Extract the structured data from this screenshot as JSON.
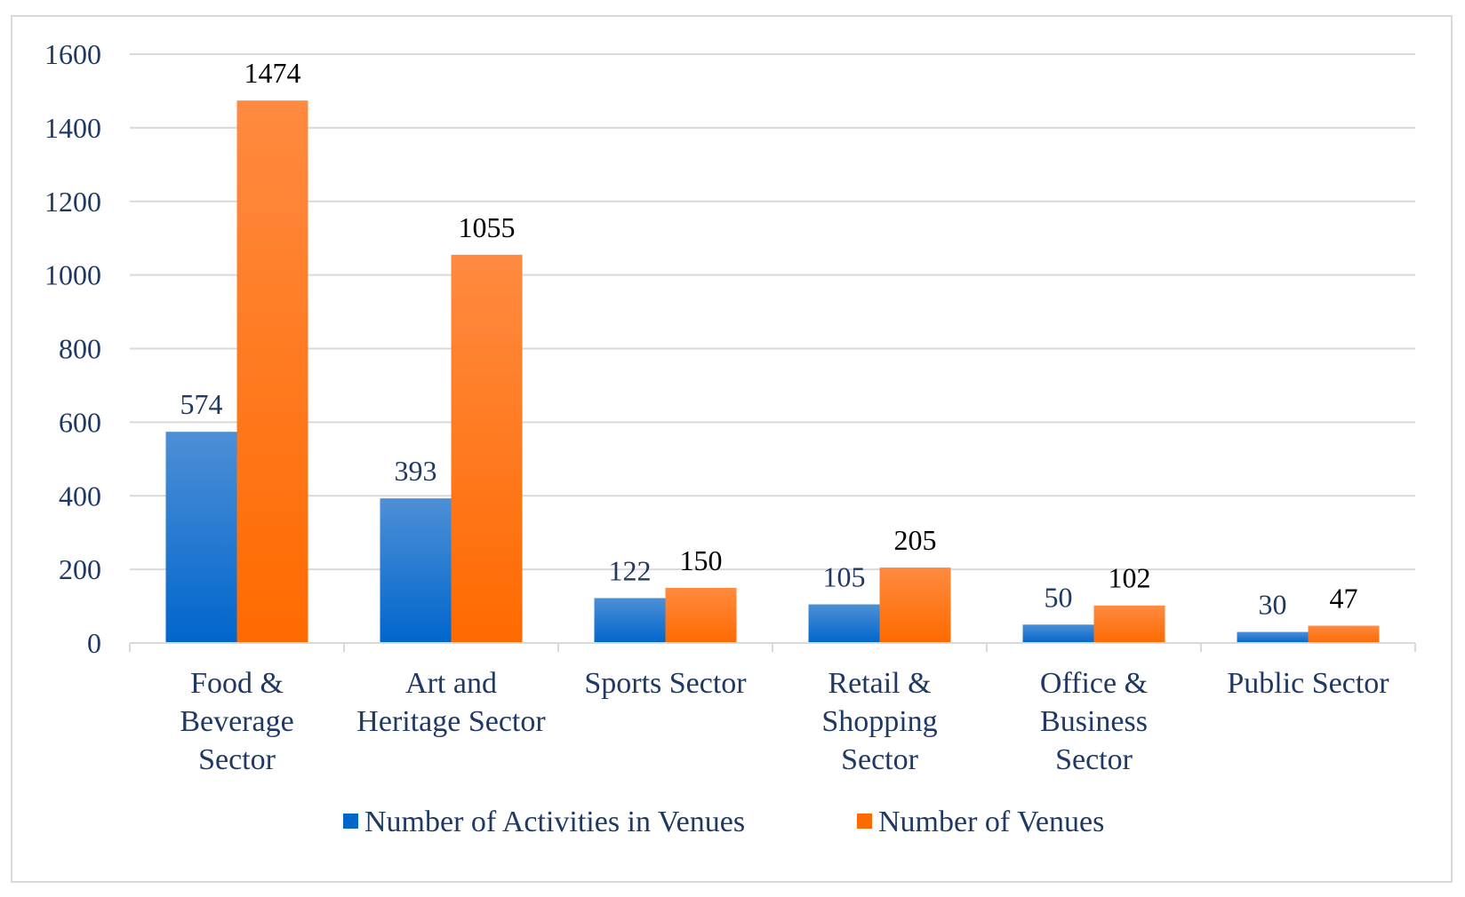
{
  "chart_data": {
    "type": "bar",
    "title": "",
    "xlabel": "",
    "ylabel": "",
    "ylim": [
      0,
      1600
    ],
    "yticks": [
      0,
      200,
      400,
      600,
      800,
      1000,
      1200,
      1400,
      1600
    ],
    "grid": true,
    "legend_position": "bottom",
    "categories": [
      [
        "Food &",
        "Beverage",
        "Sector"
      ],
      [
        "Art and",
        "Heritage Sector"
      ],
      [
        "Sports Sector"
      ],
      [
        "Retail &",
        "Shopping",
        "Sector"
      ],
      [
        "Office &",
        "Business",
        "Sector"
      ],
      [
        "Public Sector"
      ]
    ],
    "series": [
      {
        "name": "Number of Activities in Venues",
        "color": "#0066cc",
        "color_light": "#4d8fd6",
        "label_color": "#1f3864",
        "values": [
          574,
          393,
          122,
          105,
          50,
          30
        ]
      },
      {
        "name": "Number of Venues",
        "color": "#ff6a00",
        "color_light": "#ff8a40",
        "label_color": "#000000",
        "values": [
          1474,
          1055,
          150,
          205,
          102,
          47
        ]
      }
    ]
  },
  "colors": {
    "grid": "#d9d9d9",
    "axis": "#d9d9d9",
    "text": "#1f3864"
  }
}
